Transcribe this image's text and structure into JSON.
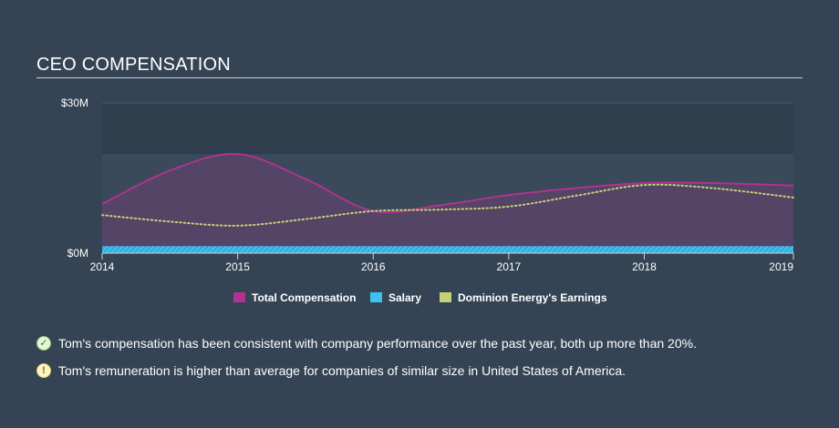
{
  "header": {
    "title": "CEO COMPENSATION"
  },
  "chart_data": {
    "type": "area",
    "y_tick_labels": [
      "$30M",
      "$0M"
    ],
    "y_ticks": [
      30,
      0
    ],
    "ylim": [
      0,
      30
    ],
    "x_ticks": [
      2014,
      2015,
      2016,
      2017,
      2018,
      2019
    ],
    "xlim": [
      2014,
      2019.1
    ],
    "grid": true,
    "legend_position": "bottom",
    "series": [
      {
        "name": "Total Compensation",
        "color": "#b0338f",
        "style": "area",
        "x": [
          2014,
          2014.5,
          2015,
          2015.5,
          2016,
          2016.5,
          2017,
          2017.5,
          2018,
          2018.5,
          2019.1
        ],
        "y": [
          9.8,
          16.5,
          19.8,
          14.8,
          8.4,
          9.6,
          11.6,
          13.0,
          14.0,
          14.0,
          13.5
        ]
      },
      {
        "name": "Salary",
        "color": "#3fc1f0",
        "style": "band",
        "x": [
          2014,
          2019.1
        ],
        "y": [
          1.4,
          1.4
        ]
      },
      {
        "name": "Dominion Energy's Earnings",
        "color": "#c5d27a",
        "style": "dotted",
        "x": [
          2014,
          2014.5,
          2015,
          2015.5,
          2016,
          2016.5,
          2017,
          2017.5,
          2018,
          2018.5,
          2019.1
        ],
        "y": [
          7.6,
          6.3,
          5.5,
          6.8,
          8.4,
          8.7,
          9.3,
          11.5,
          13.6,
          13.0,
          11.1
        ]
      }
    ]
  },
  "insights": [
    {
      "icon": "check-icon",
      "text": "Tom's compensation has been consistent with company performance over the past year, both up more than 20%."
    },
    {
      "icon": "warning-icon",
      "text": "Tom's remuneration is higher than average for companies of similar size in United States of America."
    }
  ]
}
